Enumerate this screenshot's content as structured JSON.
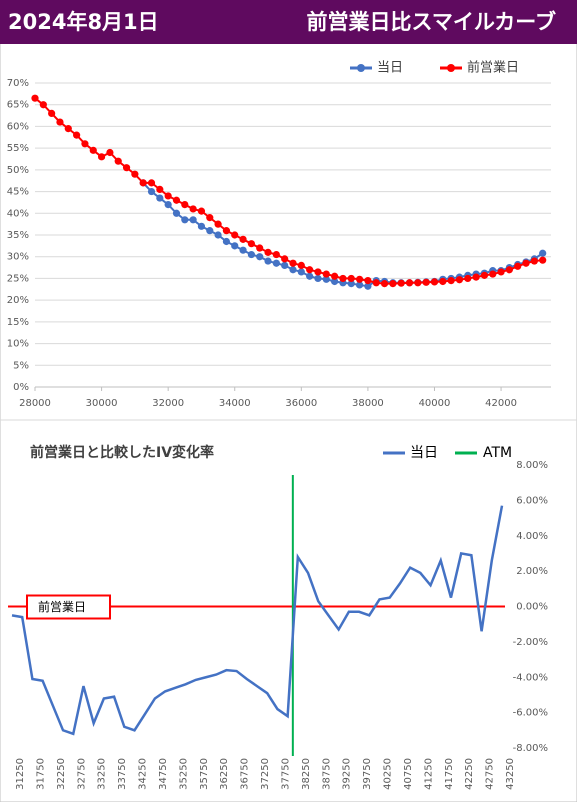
{
  "header": {
    "date": "2024年8月1日",
    "title": "前営業日比スマイルカーブ"
  },
  "chart_data": [
    {
      "type": "line",
      "markers": true,
      "grid": true,
      "x": [
        28000,
        28250,
        28500,
        28750,
        29000,
        29250,
        29500,
        29750,
        30000,
        30250,
        30500,
        30750,
        31000,
        31250,
        31500,
        31750,
        32000,
        32250,
        32500,
        32750,
        33000,
        33250,
        33500,
        33750,
        34000,
        34250,
        34500,
        34750,
        35000,
        35250,
        35500,
        35750,
        36000,
        36250,
        36500,
        36750,
        37000,
        37250,
        37500,
        37750,
        38000,
        38250,
        38500,
        38750,
        39000,
        39250,
        39500,
        39750,
        40000,
        40250,
        40500,
        40750,
        41000,
        41250,
        41500,
        41750,
        42000,
        42250,
        42500,
        42750,
        43000,
        43250
      ],
      "series": [
        {
          "name": "当日",
          "color": "#4472c4",
          "values": [
            null,
            null,
            null,
            null,
            null,
            null,
            null,
            null,
            null,
            null,
            null,
            null,
            null,
            47,
            45,
            43.5,
            42,
            40,
            38.5,
            38.5,
            37,
            36,
            35,
            33.5,
            32.5,
            31.5,
            30.5,
            30,
            29,
            28.5,
            28,
            27,
            26.5,
            25.5,
            25,
            24.8,
            24.3,
            24,
            23.8,
            23.5,
            23.2,
            24.5,
            24.3,
            24,
            24,
            24,
            24.1,
            24.2,
            24.3,
            24.8,
            25,
            25.3,
            25.7,
            26,
            26.2,
            26.8,
            26.8,
            27.5,
            28.2,
            28.8,
            29.5,
            30.8
          ]
        },
        {
          "name": "前営業日",
          "color": "#ff0000",
          "values": [
            66.5,
            65,
            63,
            61,
            59.5,
            58,
            56,
            54.5,
            53,
            54,
            52,
            50.5,
            49,
            47,
            47,
            45.5,
            44,
            43,
            42,
            41,
            40.5,
            39,
            37.5,
            36,
            35,
            34,
            33,
            32,
            31,
            30.5,
            29.5,
            28.5,
            28,
            27,
            26.5,
            26,
            25.5,
            25,
            25,
            24.8,
            24.5,
            24,
            23.8,
            23.8,
            23.9,
            24,
            24,
            24.1,
            24.2,
            24.3,
            24.5,
            24.7,
            25,
            25.3,
            25.7,
            26,
            26.5,
            27,
            27.8,
            28.5,
            29,
            29.2
          ]
        }
      ],
      "xlim": [
        28000,
        43500
      ],
      "xticks": [
        28000,
        30000,
        32000,
        34000,
        36000,
        38000,
        40000,
        42000
      ],
      "ylim": [
        0,
        70
      ],
      "yticks": [
        {
          "value": 0,
          "label": "0%"
        },
        {
          "value": 5,
          "label": "5%"
        },
        {
          "value": 10,
          "label": "10%"
        },
        {
          "value": 15,
          "label": "15%"
        },
        {
          "value": 20,
          "label": "20%"
        },
        {
          "value": 25,
          "label": "25%"
        },
        {
          "value": 30,
          "label": "30%"
        },
        {
          "value": 35,
          "label": "35%"
        },
        {
          "value": 40,
          "label": "40%"
        },
        {
          "value": 45,
          "label": "45%"
        },
        {
          "value": 50,
          "label": "50%"
        },
        {
          "value": 55,
          "label": "55%"
        },
        {
          "value": 60,
          "label": "60%"
        },
        {
          "value": 65,
          "label": "65%"
        },
        {
          "value": 70,
          "label": "70%"
        }
      ]
    },
    {
      "type": "line",
      "title": "前営業日と比較したIV変化率",
      "yaxis_side": "right",
      "categories": [
        "31250",
        null,
        "31750",
        null,
        "32250",
        null,
        "32750",
        null,
        "33250",
        null,
        "33750",
        null,
        "34250",
        null,
        "34750",
        null,
        "35250",
        null,
        "35750",
        null,
        "36250",
        null,
        "36750",
        null,
        "37250",
        null,
        "37750",
        null,
        "38250",
        null,
        "38750",
        null,
        "39250",
        null,
        "39750",
        null,
        "40250",
        null,
        "40750",
        null,
        "41250",
        null,
        "41750",
        null,
        "42250",
        null,
        "42750",
        null,
        "43250"
      ],
      "series": [
        {
          "name": "当日",
          "color": "#4472c4",
          "values": [
            -0.5,
            -0.6,
            -4.1,
            -4.2,
            -5.6,
            -7.0,
            -7.2,
            -4.5,
            -6.6,
            -5.2,
            -5.1,
            -6.8,
            -7.0,
            -6.1,
            -5.2,
            -4.8,
            -4.6,
            -4.4,
            -4.15,
            -4.0,
            -3.85,
            -3.6,
            -3.65,
            -4.1,
            -4.5,
            -4.9,
            -5.8,
            -6.2,
            2.8,
            1.9,
            0.3,
            -0.5,
            -1.3,
            -0.3,
            -0.3,
            -0.5,
            0.4,
            0.5,
            1.3,
            2.2,
            1.9,
            1.2,
            2.6,
            0.5,
            3.0,
            2.9,
            -1.4,
            2.6,
            5.7
          ]
        }
      ],
      "reference_lines": [
        {
          "name": "ATM",
          "color": "#00b050",
          "x": "38250"
        }
      ],
      "annotation": {
        "text": "前営業日",
        "value": 0,
        "color": "#ff0000"
      },
      "ylim": [
        -8,
        8
      ],
      "yticks": [
        {
          "value": -8,
          "label": "-8.00%"
        },
        {
          "value": -6,
          "label": "-6.00%"
        },
        {
          "value": -4,
          "label": "-4.00%"
        },
        {
          "value": -2,
          "label": "-2.00%"
        },
        {
          "value": 0,
          "label": "0.00%"
        },
        {
          "value": 2,
          "label": "2.00%"
        },
        {
          "value": 4,
          "label": "4.00%"
        },
        {
          "value": 6,
          "label": "6.00%"
        },
        {
          "value": 8,
          "label": "8.00%"
        }
      ]
    }
  ]
}
